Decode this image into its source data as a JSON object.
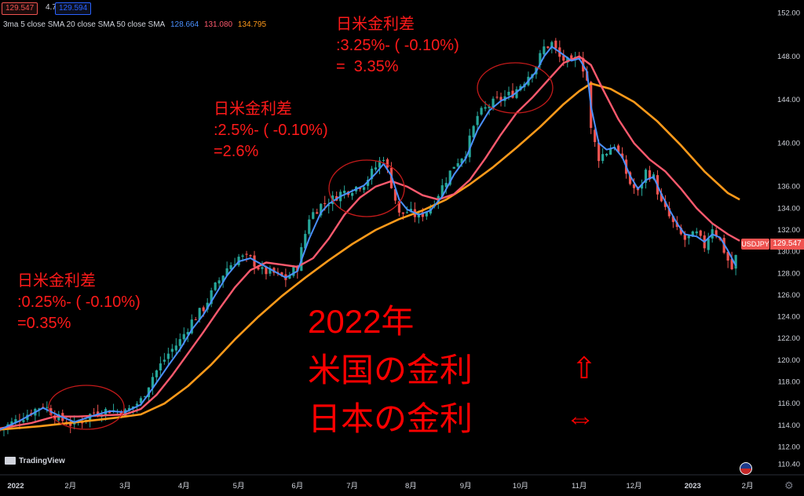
{
  "header": {
    "price_red": "129.547",
    "mid_value": "4.7",
    "price_blue": "129.594",
    "indicator_name": "3ma 5 close SMA 20 close SMA 50 close SMA",
    "ma_values": [
      {
        "value": "128.664",
        "color": "#4a90ff"
      },
      {
        "value": "131.080",
        "color": "#ff5a6e"
      },
      {
        "value": "134.795",
        "color": "#ff9a1a"
      }
    ]
  },
  "annotations": {
    "a1": "日米金利差\n:0.25%- ( -0.10%)\n=0.35%",
    "a2": "日米金利差\n:2.5%- ( -0.10%)\n=2.6%",
    "a3": "日米金利差\n:3.25%- ( -0.10%)\n=  3.35%"
  },
  "big_text": {
    "line1": "2022年",
    "line2": "米国の金利",
    "line3": "日本の金利",
    "arrow_up": "⇧",
    "arrow_lr": "⇔"
  },
  "symbol_label": "USDJPY",
  "current_price": "129.547",
  "brand": "TradingView",
  "colors": {
    "up": "#26a69a",
    "down": "#ef5350",
    "sma5": "#4a90ff",
    "sma20": "#ff5a6e",
    "sma50": "#ff9a1a",
    "annotation": "#ff1a1a"
  },
  "chart_data": {
    "type": "line",
    "symbol": "USDJPY",
    "ylim": [
      109.5,
      153.2
    ],
    "yticks": [
      110.4,
      112.0,
      114.0,
      116.0,
      118.0,
      120.0,
      122.0,
      124.0,
      126.0,
      128.0,
      130.0,
      132.0,
      134.0,
      136.0,
      140.0,
      144.0,
      148.0,
      152.0
    ],
    "ytick_labels": [
      "110.40",
      "112.00",
      "114.00",
      "116.00",
      "118.00",
      "120.00",
      "122.00",
      "124.00",
      "126.00",
      "128.00",
      "130.00",
      "132.00",
      "134.00",
      "136.00",
      "140.00",
      "144.00",
      "148.00",
      "152.00"
    ],
    "xticks": [
      {
        "label": "2022",
        "t": 4.0
      },
      {
        "label": "2月",
        "t": 18.0
      },
      {
        "label": "3月",
        "t": 32.0
      },
      {
        "label": "4月",
        "t": 47.0
      },
      {
        "label": "5月",
        "t": 61.0
      },
      {
        "label": "6月",
        "t": 76.0
      },
      {
        "label": "7月",
        "t": 90.0
      },
      {
        "label": "8月",
        "t": 105.0
      },
      {
        "label": "9月",
        "t": 119.0
      },
      {
        "label": "10月",
        "t": 133.0
      },
      {
        "label": "11月",
        "t": 148.0
      },
      {
        "label": "12月",
        "t": 162.0
      },
      {
        "label": "2023",
        "t": 177.0
      },
      {
        "label": "2月",
        "t": 191.0
      }
    ],
    "t_range": [
      0,
      195
    ],
    "price_path": [
      [
        0,
        113.6
      ],
      [
        5,
        114.6
      ],
      [
        11,
        115.9
      ],
      [
        15,
        114.6
      ],
      [
        19,
        114.0
      ],
      [
        24,
        115.2
      ],
      [
        28,
        115.4
      ],
      [
        32,
        115.2
      ],
      [
        36,
        116.3
      ],
      [
        39,
        118.5
      ],
      [
        43,
        120.6
      ],
      [
        46,
        121.8
      ],
      [
        49,
        123.6
      ],
      [
        52,
        124.8
      ],
      [
        55,
        126.8
      ],
      [
        58,
        128.5
      ],
      [
        61,
        129.5
      ],
      [
        64,
        129.3
      ],
      [
        67,
        128.2
      ],
      [
        70,
        128.0
      ],
      [
        73,
        127.5
      ],
      [
        76,
        128.6
      ],
      [
        79,
        133.2
      ],
      [
        82,
        134.3
      ],
      [
        84,
        134.6
      ],
      [
        87,
        135.4
      ],
      [
        90,
        135.8
      ],
      [
        93,
        136.3
      ],
      [
        96,
        137.8
      ],
      [
        98,
        138.8
      ],
      [
        100,
        136.2
      ],
      [
        102,
        133.4
      ],
      [
        104,
        133.7
      ],
      [
        107,
        133.2
      ],
      [
        110,
        134.1
      ],
      [
        113,
        136.0
      ],
      [
        116,
        138.0
      ],
      [
        119,
        139.2
      ],
      [
        122,
        142.5
      ],
      [
        125,
        143.5
      ],
      [
        128,
        144.1
      ],
      [
        131,
        144.6
      ],
      [
        134,
        145.8
      ],
      [
        137,
        147.2
      ],
      [
        139,
        148.8
      ],
      [
        141,
        149.2
      ],
      [
        143,
        147.9
      ],
      [
        146,
        147.3
      ],
      [
        148,
        148.1
      ],
      [
        150,
        145.8
      ],
      [
        151,
        141.2
      ],
      [
        153,
        138.7
      ],
      [
        155,
        139.2
      ],
      [
        157,
        139.9
      ],
      [
        159,
        138.2
      ],
      [
        161,
        136.3
      ],
      [
        163,
        135.4
      ],
      [
        165,
        137.4
      ],
      [
        167,
        136.8
      ],
      [
        169,
        134.4
      ],
      [
        171,
        133.2
      ],
      [
        173,
        131.9
      ],
      [
        175,
        131.1
      ],
      [
        178,
        131.6
      ],
      [
        180,
        130.5
      ],
      [
        182,
        132.3
      ],
      [
        184,
        131.0
      ],
      [
        186,
        129.2
      ],
      [
        187,
        128.4
      ],
      [
        188,
        129.5
      ]
    ],
    "sma5_path": [
      [
        0,
        113.6
      ],
      [
        5,
        114.4
      ],
      [
        11,
        115.6
      ],
      [
        15,
        114.9
      ],
      [
        19,
        114.3
      ],
      [
        24,
        114.9
      ],
      [
        28,
        115.3
      ],
      [
        32,
        115.2
      ],
      [
        36,
        115.9
      ],
      [
        39,
        117.4
      ],
      [
        43,
        119.5
      ],
      [
        46,
        121.0
      ],
      [
        49,
        122.8
      ],
      [
        52,
        124.2
      ],
      [
        55,
        126.0
      ],
      [
        58,
        127.8
      ],
      [
        61,
        129.1
      ],
      [
        64,
        129.4
      ],
      [
        67,
        128.8
      ],
      [
        70,
        128.2
      ],
      [
        73,
        127.6
      ],
      [
        76,
        128.2
      ],
      [
        79,
        131.2
      ],
      [
        82,
        133.6
      ],
      [
        84,
        134.4
      ],
      [
        87,
        135.1
      ],
      [
        90,
        135.6
      ],
      [
        93,
        136.1
      ],
      [
        96,
        137.2
      ],
      [
        98,
        138.1
      ],
      [
        100,
        137.0
      ],
      [
        102,
        134.8
      ],
      [
        104,
        133.9
      ],
      [
        107,
        133.4
      ],
      [
        110,
        133.8
      ],
      [
        113,
        135.1
      ],
      [
        116,
        137.1
      ],
      [
        119,
        138.6
      ],
      [
        122,
        141.2
      ],
      [
        125,
        143.0
      ],
      [
        128,
        143.9
      ],
      [
        131,
        144.4
      ],
      [
        134,
        145.3
      ],
      [
        137,
        146.6
      ],
      [
        139,
        148.0
      ],
      [
        141,
        148.9
      ],
      [
        143,
        148.4
      ],
      [
        146,
        147.6
      ],
      [
        148,
        147.8
      ],
      [
        150,
        146.6
      ],
      [
        151,
        143.4
      ],
      [
        153,
        140.0
      ],
      [
        155,
        139.4
      ],
      [
        157,
        139.6
      ],
      [
        159,
        138.7
      ],
      [
        161,
        137.0
      ],
      [
        163,
        135.8
      ],
      [
        165,
        136.6
      ],
      [
        167,
        136.9
      ],
      [
        169,
        135.3
      ],
      [
        171,
        133.9
      ],
      [
        173,
        132.6
      ],
      [
        175,
        131.6
      ],
      [
        178,
        131.4
      ],
      [
        180,
        130.9
      ],
      [
        182,
        131.6
      ],
      [
        184,
        131.3
      ],
      [
        186,
        130.1
      ],
      [
        188,
        128.7
      ]
    ],
    "sma20_path": [
      [
        0,
        113.7
      ],
      [
        8,
        114.2
      ],
      [
        14,
        114.8
      ],
      [
        20,
        114.8
      ],
      [
        26,
        114.9
      ],
      [
        32,
        115.0
      ],
      [
        36,
        115.5
      ],
      [
        40,
        116.8
      ],
      [
        44,
        118.6
      ],
      [
        48,
        120.6
      ],
      [
        52,
        122.6
      ],
      [
        56,
        124.7
      ],
      [
        60,
        126.7
      ],
      [
        64,
        128.3
      ],
      [
        68,
        129.0
      ],
      [
        72,
        128.8
      ],
      [
        76,
        128.6
      ],
      [
        80,
        129.4
      ],
      [
        84,
        131.2
      ],
      [
        88,
        133.4
      ],
      [
        92,
        135.0
      ],
      [
        96,
        136.0
      ],
      [
        100,
        136.5
      ],
      [
        104,
        136.0
      ],
      [
        108,
        135.2
      ],
      [
        112,
        134.8
      ],
      [
        116,
        135.3
      ],
      [
        120,
        136.6
      ],
      [
        124,
        138.6
      ],
      [
        128,
        140.8
      ],
      [
        132,
        142.8
      ],
      [
        136,
        144.2
      ],
      [
        140,
        145.8
      ],
      [
        144,
        147.4
      ],
      [
        148,
        148.0
      ],
      [
        151,
        147.2
      ],
      [
        154,
        145.0
      ],
      [
        158,
        142.2
      ],
      [
        162,
        140.0
      ],
      [
        166,
        138.5
      ],
      [
        170,
        137.4
      ],
      [
        174,
        135.8
      ],
      [
        178,
        134.0
      ],
      [
        182,
        132.6
      ],
      [
        186,
        131.6
      ],
      [
        189,
        131.0
      ]
    ],
    "sma50_path": [
      [
        0,
        113.6
      ],
      [
        10,
        113.9
      ],
      [
        20,
        114.3
      ],
      [
        30,
        114.7
      ],
      [
        36,
        115.0
      ],
      [
        42,
        116.0
      ],
      [
        48,
        117.6
      ],
      [
        54,
        119.6
      ],
      [
        60,
        121.9
      ],
      [
        66,
        124.0
      ],
      [
        72,
        125.9
      ],
      [
        78,
        127.6
      ],
      [
        84,
        129.2
      ],
      [
        90,
        130.7
      ],
      [
        96,
        132.0
      ],
      [
        102,
        133.0
      ],
      [
        108,
        133.8
      ],
      [
        114,
        134.8
      ],
      [
        120,
        136.2
      ],
      [
        126,
        137.8
      ],
      [
        132,
        139.6
      ],
      [
        138,
        141.5
      ],
      [
        144,
        143.6
      ],
      [
        148,
        144.8
      ],
      [
        151,
        145.5
      ],
      [
        156,
        145.0
      ],
      [
        162,
        143.8
      ],
      [
        168,
        142.0
      ],
      [
        174,
        139.8
      ],
      [
        180,
        137.4
      ],
      [
        186,
        135.4
      ],
      [
        189,
        134.8
      ]
    ]
  }
}
